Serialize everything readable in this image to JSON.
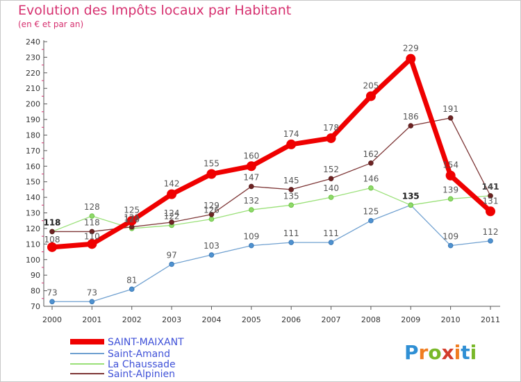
{
  "title": "Evolution des Impôts locaux par Habitant",
  "subtitle": "(en € et par an)",
  "logo_text": "Proxiti",
  "chart_data": {
    "type": "line",
    "title": "Evolution des Impôts locaux par Habitant",
    "subtitle": "(en € et par an)",
    "x": [
      "2000",
      "2001",
      "2002",
      "2003",
      "2004",
      "2005",
      "2006",
      "2007",
      "2008",
      "2009",
      "2010",
      "2011"
    ],
    "ylim": [
      70,
      240
    ],
    "yticks": [
      70,
      80,
      90,
      100,
      110,
      120,
      130,
      140,
      150,
      160,
      170,
      180,
      190,
      200,
      210,
      220,
      230,
      240
    ],
    "grid": false,
    "legend_placement": "bottom-left",
    "series": [
      {
        "name": "SAINT-MAIXANT",
        "color": "#ef0000",
        "values": [
          108,
          110,
          125,
          142,
          155,
          160,
          174,
          178,
          205,
          229,
          154,
          131
        ]
      },
      {
        "name": "Saint-Amand",
        "color": "#6fa0d0",
        "values": [
          73,
          73,
          81,
          97,
          103,
          109,
          111,
          111,
          125,
          135,
          109,
          112
        ]
      },
      {
        "name": "La Chaussade",
        "color": "#99e077",
        "values": [
          118,
          128,
          120,
          122,
          126,
          132,
          135,
          140,
          146,
          135,
          139,
          141
        ]
      },
      {
        "name": "Saint-Alpinien",
        "color": "#7d3535",
        "values": [
          118,
          118,
          121,
          124,
          129,
          147,
          145,
          152,
          162,
          186,
          191,
          141
        ]
      }
    ]
  }
}
